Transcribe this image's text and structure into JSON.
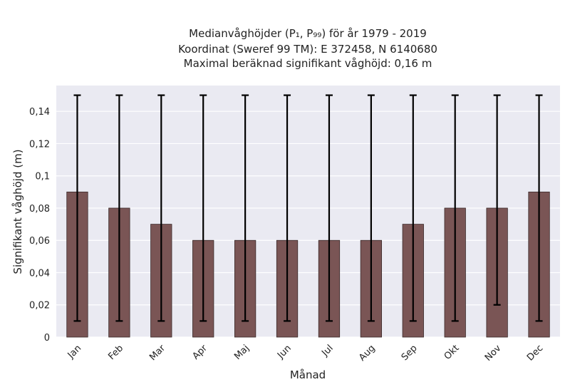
{
  "chart_data": {
    "type": "bar",
    "title_lines": [
      "Medianvåghöjder (P₁, P₉₉) för år 1979 - 2019",
      "Koordinat (Sweref 99 TM): E 372458, N 6140680",
      "Maximal beräknad signifikant våghöjd: 0,16 m"
    ],
    "xlabel": "Månad",
    "ylabel": "Signifikant våghöjd (m)",
    "categories": [
      "Jan",
      "Feb",
      "Mar",
      "Apr",
      "Maj",
      "Jun",
      "Jul",
      "Aug",
      "Sep",
      "Okt",
      "Nov",
      "Dec"
    ],
    "values": [
      0.09,
      0.08,
      0.07,
      0.06,
      0.06,
      0.06,
      0.06,
      0.06,
      0.07,
      0.08,
      0.08,
      0.09
    ],
    "error_low": [
      0.01,
      0.01,
      0.01,
      0.01,
      0.01,
      0.01,
      0.01,
      0.01,
      0.01,
      0.01,
      0.02,
      0.01
    ],
    "error_high": [
      0.15,
      0.15,
      0.15,
      0.15,
      0.15,
      0.15,
      0.15,
      0.15,
      0.15,
      0.15,
      0.15,
      0.15
    ],
    "ylim": [
      0,
      0.156
    ],
    "yticks": [
      0,
      0.02,
      0.04,
      0.06,
      0.08,
      0.1,
      0.12,
      0.14
    ],
    "ytick_labels": [
      "0",
      "0,02",
      "0,04",
      "0,06",
      "0,08",
      "0,1",
      "0,12",
      "0,14"
    ],
    "grid": true,
    "colors": {
      "bar": "#7a5555",
      "bar_edge": "#3a2a2a",
      "error_bar": "#000000",
      "plot_background": "#eaeaf2",
      "grid": "#ffffff"
    }
  }
}
